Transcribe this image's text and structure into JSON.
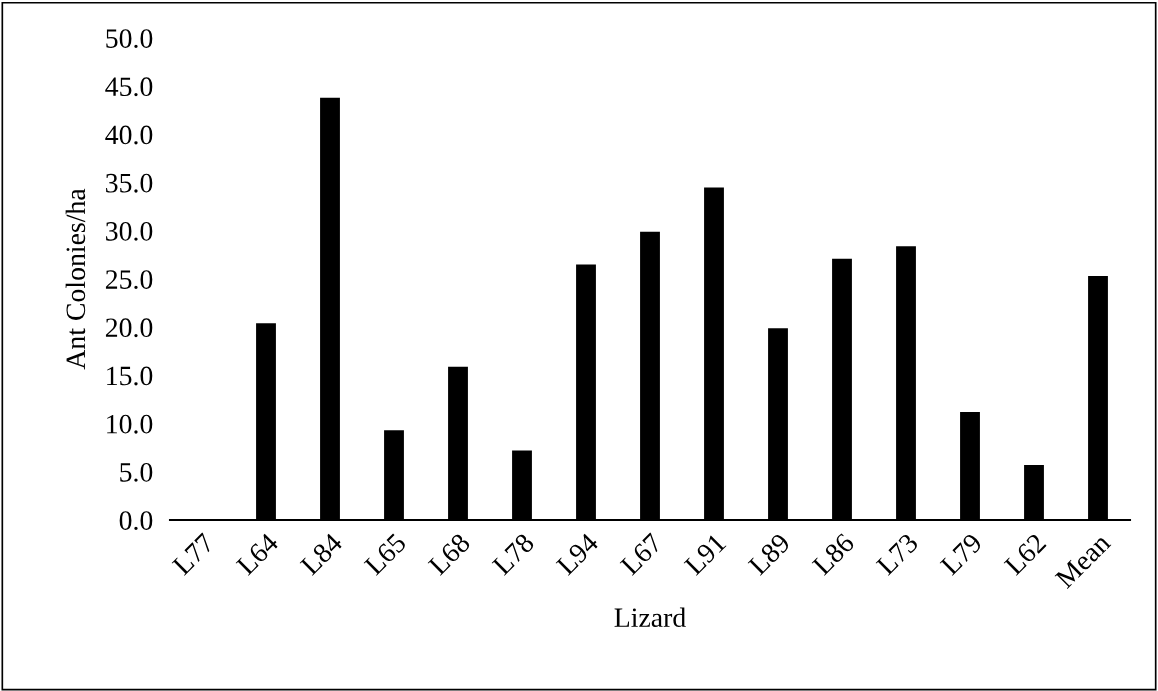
{
  "chart_data": {
    "type": "bar",
    "xlabel": "Lizard",
    "ylabel": "Ant Colonies/ha",
    "categories": [
      "L77",
      "L64",
      "L84",
      "L65",
      "L68",
      "L78",
      "L94",
      "L67",
      "L91",
      "L89",
      "L86",
      "L73",
      "L79",
      "L62",
      "Mean"
    ],
    "values": [
      0,
      20.4,
      43.8,
      9.3,
      15.9,
      7.2,
      26.5,
      29.9,
      34.5,
      19.9,
      27.1,
      28.4,
      11.2,
      5.7,
      25.3
    ],
    "color": "#000000",
    "ylim": [
      0,
      50
    ],
    "yticks": [
      {
        "value": 0,
        "label": "0.0"
      },
      {
        "value": 5,
        "label": "5.0"
      },
      {
        "value": 10,
        "label": "10.0"
      },
      {
        "value": 15,
        "label": "15.0"
      },
      {
        "value": 20,
        "label": "20.0"
      },
      {
        "value": 25,
        "label": "25.0"
      },
      {
        "value": 30,
        "label": "30.0"
      },
      {
        "value": 35,
        "label": "35.0"
      },
      {
        "value": 40,
        "label": "40.0"
      },
      {
        "value": 45,
        "label": "45.0"
      },
      {
        "value": 50,
        "label": "50.0"
      }
    ],
    "grid": false
  }
}
